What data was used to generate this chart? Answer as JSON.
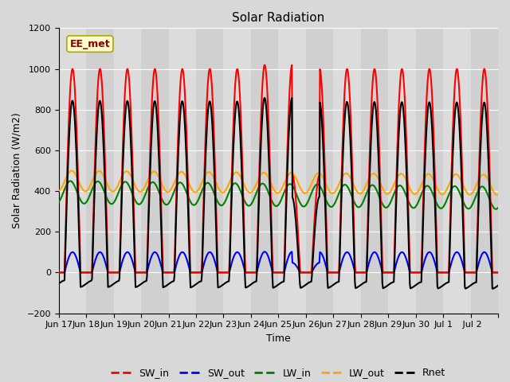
{
  "title": "Solar Radiation",
  "ylabel": "Solar Radiation (W/m2)",
  "xlabel": "Time",
  "ylim": [
    -200,
    1200
  ],
  "yticks": [
    -200,
    0,
    200,
    400,
    600,
    800,
    1000,
    1200
  ],
  "bg_color": "#d8d8d8",
  "annotation_text": "EE_met",
  "annotation_color": "#8b0000",
  "annotation_bg": "#ffffcc",
  "series": {
    "SW_in": {
      "color": "red",
      "lw": 1.5,
      "zorder": 4
    },
    "SW_out": {
      "color": "blue",
      "lw": 1.5,
      "zorder": 4
    },
    "LW_in": {
      "color": "green",
      "lw": 1.5,
      "zorder": 3
    },
    "LW_out": {
      "color": "orange",
      "lw": 1.5,
      "zorder": 3
    },
    "Rnet": {
      "color": "black",
      "lw": 1.5,
      "zorder": 5
    }
  },
  "x_tick_labels": [
    "Jun 17",
    "Jun 18",
    "Jun 19",
    "Jun 20",
    "Jun 21",
    "Jun 22",
    "Jun 23",
    "Jun 24",
    "Jun 25",
    "Jun 26",
    "Jun 27",
    "Jun 28",
    "Jun 29",
    "Jun 30",
    "Jul 1",
    " Jul 2"
  ],
  "n_days": 16,
  "legend_entries": [
    "SW_in",
    "SW_out",
    "LW_in",
    "LW_out",
    "Rnet"
  ],
  "legend_colors": [
    "red",
    "blue",
    "green",
    "orange",
    "black"
  ]
}
